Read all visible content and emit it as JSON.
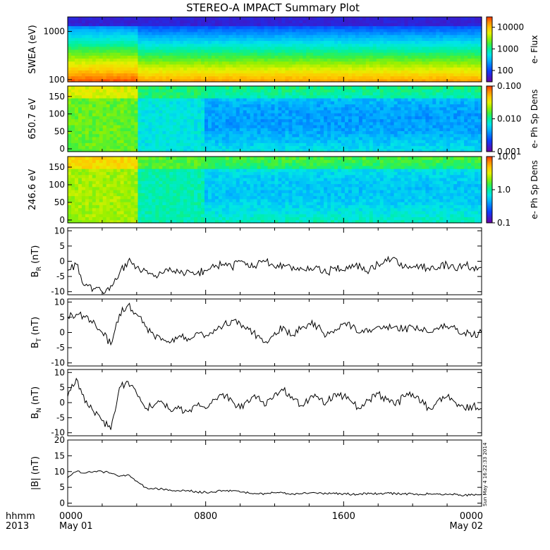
{
  "title": "STEREO-A IMPACT Summary Plot",
  "time_axis": {
    "row1_label": "hhmm",
    "row2_label": "2013",
    "ticks": [
      {
        "hour": 0,
        "time": "0000",
        "date": "May 01"
      },
      {
        "hour": 8,
        "time": "0800",
        "date": ""
      },
      {
        "hour": 16,
        "time": "1600",
        "date": ""
      },
      {
        "hour": 24,
        "time": "0000",
        "date": "May 02"
      }
    ],
    "range_hours": [
      0,
      24
    ]
  },
  "stamp": "Sun May  4 16:22:33 2014",
  "colormap": [
    "#6a00a8",
    "#3a1ccc",
    "#0a3cff",
    "#0078ff",
    "#00b4ff",
    "#00e6e6",
    "#00f0a0",
    "#3cf040",
    "#96f000",
    "#e6f000",
    "#ffc800",
    "#ff8c00",
    "#ff3200"
  ],
  "chart_data": [
    {
      "id": "swea",
      "type": "heatmap",
      "ylabel": "SWEA (eV)",
      "yscale": "log",
      "ylim": [
        90,
        2000
      ],
      "yticks": [
        {
          "value": 100,
          "label": "100"
        },
        {
          "value": 1000,
          "label": "1000"
        }
      ],
      "colorbar": {
        "label": "e- Flux",
        "scale": "log",
        "range": [
          30,
          30000
        ],
        "ticks": [
          {
            "value": 100,
            "label": "100"
          },
          {
            "value": 1000,
            "label": "1000"
          },
          {
            "value": 10000,
            "label": "10000"
          }
        ]
      }
    },
    {
      "id": "pad650",
      "type": "heatmap",
      "ylabel": "650.7 eV",
      "yscale": "linear",
      "ylim": [
        -8,
        180
      ],
      "yticks": [
        {
          "value": 0,
          "label": "0"
        },
        {
          "value": 50,
          "label": "50"
        },
        {
          "value": 100,
          "label": "100"
        },
        {
          "value": 150,
          "label": "150"
        }
      ],
      "colorbar": {
        "label": "e- Ph Sp Dens",
        "scale": "log",
        "range": [
          0.001,
          0.1
        ],
        "ticks": [
          {
            "value": 0.001,
            "label": "0.001"
          },
          {
            "value": 0.01,
            "label": "0.010"
          },
          {
            "value": 0.1,
            "label": "0.100"
          }
        ]
      }
    },
    {
      "id": "pad246",
      "type": "heatmap",
      "ylabel": "246.6 eV",
      "yscale": "linear",
      "ylim": [
        -8,
        180
      ],
      "yticks": [
        {
          "value": 0,
          "label": "0"
        },
        {
          "value": 50,
          "label": "50"
        },
        {
          "value": 100,
          "label": "100"
        },
        {
          "value": 150,
          "label": "150"
        }
      ],
      "colorbar": {
        "label": "e- Ph Sp Dens",
        "scale": "log",
        "range": [
          0.1,
          10
        ],
        "ticks": [
          {
            "value": 0.1,
            "label": "0.1"
          },
          {
            "value": 1,
            "label": "1.0"
          },
          {
            "value": 10,
            "label": "10.0"
          }
        ]
      }
    },
    {
      "id": "br",
      "type": "line",
      "ylabel": "B",
      "ylabel_sub": "R",
      "ylabel_unit": " (nT)",
      "ylim": [
        -11,
        11
      ],
      "yticks": [
        -10,
        -5,
        0,
        5,
        10
      ],
      "x_hours": [
        0,
        0.5,
        1,
        1.5,
        2,
        2.5,
        3,
        3.5,
        4,
        4.5,
        5,
        5.5,
        6,
        6.5,
        7,
        7.5,
        8,
        8.5,
        9,
        9.5,
        10,
        10.5,
        11,
        11.5,
        12,
        12.5,
        13,
        13.5,
        14,
        14.5,
        15,
        15.5,
        16,
        16.5,
        17,
        17.5,
        18,
        18.5,
        19,
        19.5,
        20,
        20.5,
        21,
        21.5,
        22,
        22.5,
        23,
        23.5,
        24
      ],
      "values": [
        -3,
        -1,
        -8,
        -9,
        -10,
        -8,
        -4,
        0,
        -2,
        -3,
        -5,
        -4,
        -3,
        -4,
        -3,
        -4,
        -3,
        -2,
        -1,
        -2,
        0,
        -2,
        -1,
        0,
        -2,
        -1,
        -3,
        -2,
        -3,
        -2,
        -4,
        -2,
        -3,
        -1,
        -2,
        -3,
        -1,
        0,
        1,
        -2,
        -2,
        -1,
        -3,
        -2,
        -1,
        -3,
        -1,
        -2,
        -2
      ]
    },
    {
      "id": "bt",
      "type": "line",
      "ylabel": "B",
      "ylabel_sub": "T",
      "ylabel_unit": " (nT)",
      "ylim": [
        -11,
        11
      ],
      "yticks": [
        -10,
        -5,
        0,
        5,
        10
      ],
      "x_hours": [
        0,
        0.5,
        1,
        1.5,
        2,
        2.5,
        3,
        3.5,
        4,
        4.5,
        5,
        5.5,
        6,
        6.5,
        7,
        7.5,
        8,
        8.5,
        9,
        9.5,
        10,
        10.5,
        11,
        11.5,
        12,
        12.5,
        13,
        13.5,
        14,
        14.5,
        15,
        15.5,
        16,
        16.5,
        17,
        17.5,
        18,
        18.5,
        19,
        19.5,
        20,
        20.5,
        21,
        21.5,
        22,
        22.5,
        23,
        23.5,
        24
      ],
      "values": [
        5,
        6,
        5,
        4,
        0,
        -4,
        6,
        9,
        6,
        2,
        -1,
        -2,
        -3,
        -1,
        -2,
        0,
        -1,
        1,
        2,
        4,
        3,
        1,
        -1,
        -3,
        0,
        2,
        -1,
        1,
        3,
        2,
        -1,
        1,
        3,
        2,
        0,
        1,
        2,
        2,
        2,
        1,
        2,
        1,
        0,
        1,
        2,
        1,
        0,
        -1,
        0
      ]
    },
    {
      "id": "bn",
      "type": "line",
      "ylabel": "B",
      "ylabel_sub": "N",
      "ylabel_unit": " (nT)",
      "ylim": [
        -11,
        11
      ],
      "yticks": [
        -10,
        -5,
        0,
        5,
        10
      ],
      "x_hours": [
        0,
        0.5,
        1,
        1.5,
        2,
        2.5,
        3,
        3.5,
        4,
        4.5,
        5,
        5.5,
        6,
        6.5,
        7,
        7.5,
        8,
        8.5,
        9,
        9.5,
        10,
        10.5,
        11,
        11.5,
        12,
        12.5,
        13,
        13.5,
        14,
        14.5,
        15,
        15.5,
        16,
        16.5,
        17,
        17.5,
        18,
        18.5,
        19,
        19.5,
        20,
        20.5,
        21,
        21.5,
        22,
        22.5,
        23,
        23.5,
        24
      ],
      "values": [
        2,
        8,
        0,
        -3,
        -6,
        -9,
        5,
        7,
        3,
        -2,
        -1,
        0,
        -3,
        -2,
        -3,
        -1,
        -2,
        1,
        3,
        1,
        -2,
        0,
        2,
        -1,
        3,
        4,
        2,
        -1,
        1,
        2,
        0,
        3,
        2,
        0,
        -2,
        1,
        3,
        1,
        -1,
        2,
        3,
        0,
        -2,
        1,
        2,
        0,
        -2,
        -1,
        -2
      ]
    },
    {
      "id": "bmag",
      "type": "line",
      "ylabel": "|B| (nT)",
      "ylim": [
        -1,
        20
      ],
      "yticks": [
        0,
        5,
        10,
        15,
        20
      ],
      "x_hours": [
        0,
        0.5,
        1,
        1.5,
        2,
        2.5,
        3,
        3.5,
        4,
        4.5,
        5,
        5.5,
        6,
        6.5,
        7,
        7.5,
        8,
        8.5,
        9,
        9.5,
        10,
        10.5,
        11,
        11.5,
        12,
        12.5,
        13,
        13.5,
        14,
        14.5,
        15,
        15.5,
        16,
        16.5,
        17,
        17.5,
        18,
        18.5,
        19,
        19.5,
        20,
        20.5,
        21,
        21.5,
        22,
        22.5,
        23,
        23.5,
        24
      ],
      "values": [
        8,
        10,
        9.5,
        10,
        10,
        9.5,
        8.5,
        9,
        7,
        5,
        4.5,
        4.5,
        4,
        3.8,
        4,
        3.5,
        3.5,
        3.5,
        4,
        3.8,
        3.5,
        3.2,
        3,
        3,
        3.3,
        3.2,
        3,
        3,
        3.2,
        3,
        3,
        3,
        3,
        2.8,
        3,
        3,
        3,
        3.2,
        3,
        2.9,
        3,
        2.7,
        3,
        2.8,
        2.7,
        2.8,
        2.5,
        2.6,
        2.8
      ]
    }
  ]
}
